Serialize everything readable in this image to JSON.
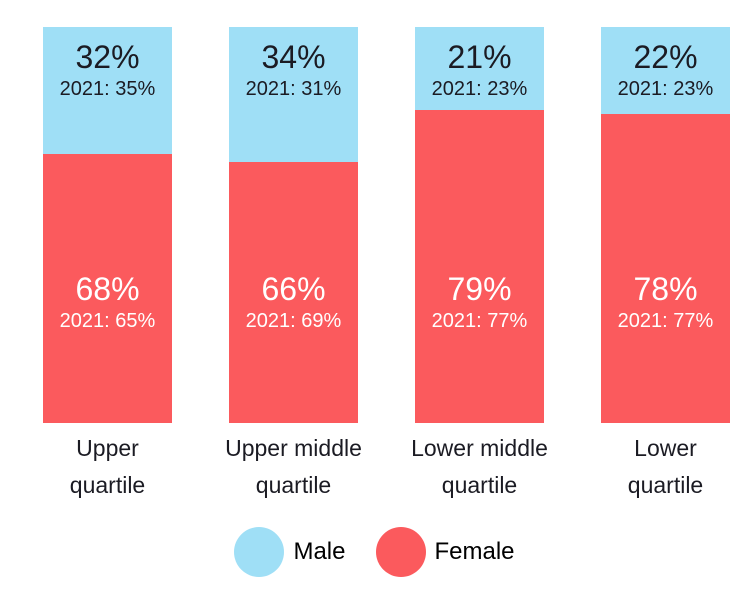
{
  "chart_data": {
    "type": "bar",
    "stacked": true,
    "title": "",
    "unit": "%",
    "ylim": [
      0,
      100
    ],
    "grid": false,
    "legend_position": "bottom",
    "prior_year": "2021",
    "categories": [
      "Upper quartile",
      "Upper middle quartile",
      "Lower middle quartile",
      "Lower quartile"
    ],
    "category_lines": [
      [
        "Upper",
        "quartile"
      ],
      [
        "Upper middle",
        "quartile"
      ],
      [
        "Lower middle",
        "quartile"
      ],
      [
        "Lower",
        "quartile"
      ]
    ],
    "series": [
      {
        "name": "Male",
        "color": "#9FDFF6",
        "values": [
          32,
          34,
          21,
          22
        ],
        "prior_year_values": [
          35,
          31,
          23,
          23
        ]
      },
      {
        "name": "Female",
        "color": "#FB5A5D",
        "values": [
          68,
          66,
          79,
          78
        ],
        "prior_year_values": [
          65,
          69,
          77,
          77
        ]
      }
    ],
    "segment_labels": [
      {
        "male": "32%",
        "male_prior": "2021: 35%",
        "female": "68%",
        "female_prior": "2021: 65%"
      },
      {
        "male": "34%",
        "male_prior": "2021: 31%",
        "female": "66%",
        "female_prior": "2021: 69%"
      },
      {
        "male": "21%",
        "male_prior": "2021: 23%",
        "female": "79%",
        "female_prior": "2021: 77%"
      },
      {
        "male": "22%",
        "male_prior": "2021: 23%",
        "female": "78%",
        "female_prior": "2021: 77%"
      }
    ],
    "legend": {
      "items": [
        {
          "label": "Male",
          "color": "#9FDFF6"
        },
        {
          "label": "Female",
          "color": "#FB5A5D"
        }
      ]
    },
    "colors": {
      "male_fill": "#9FDFF6",
      "female_fill": "#FB5A5D",
      "male_text": "#1B1B23",
      "female_text": "#FFFFFF",
      "category_text": "#1B1B23",
      "background": "#FFFFFF"
    }
  }
}
